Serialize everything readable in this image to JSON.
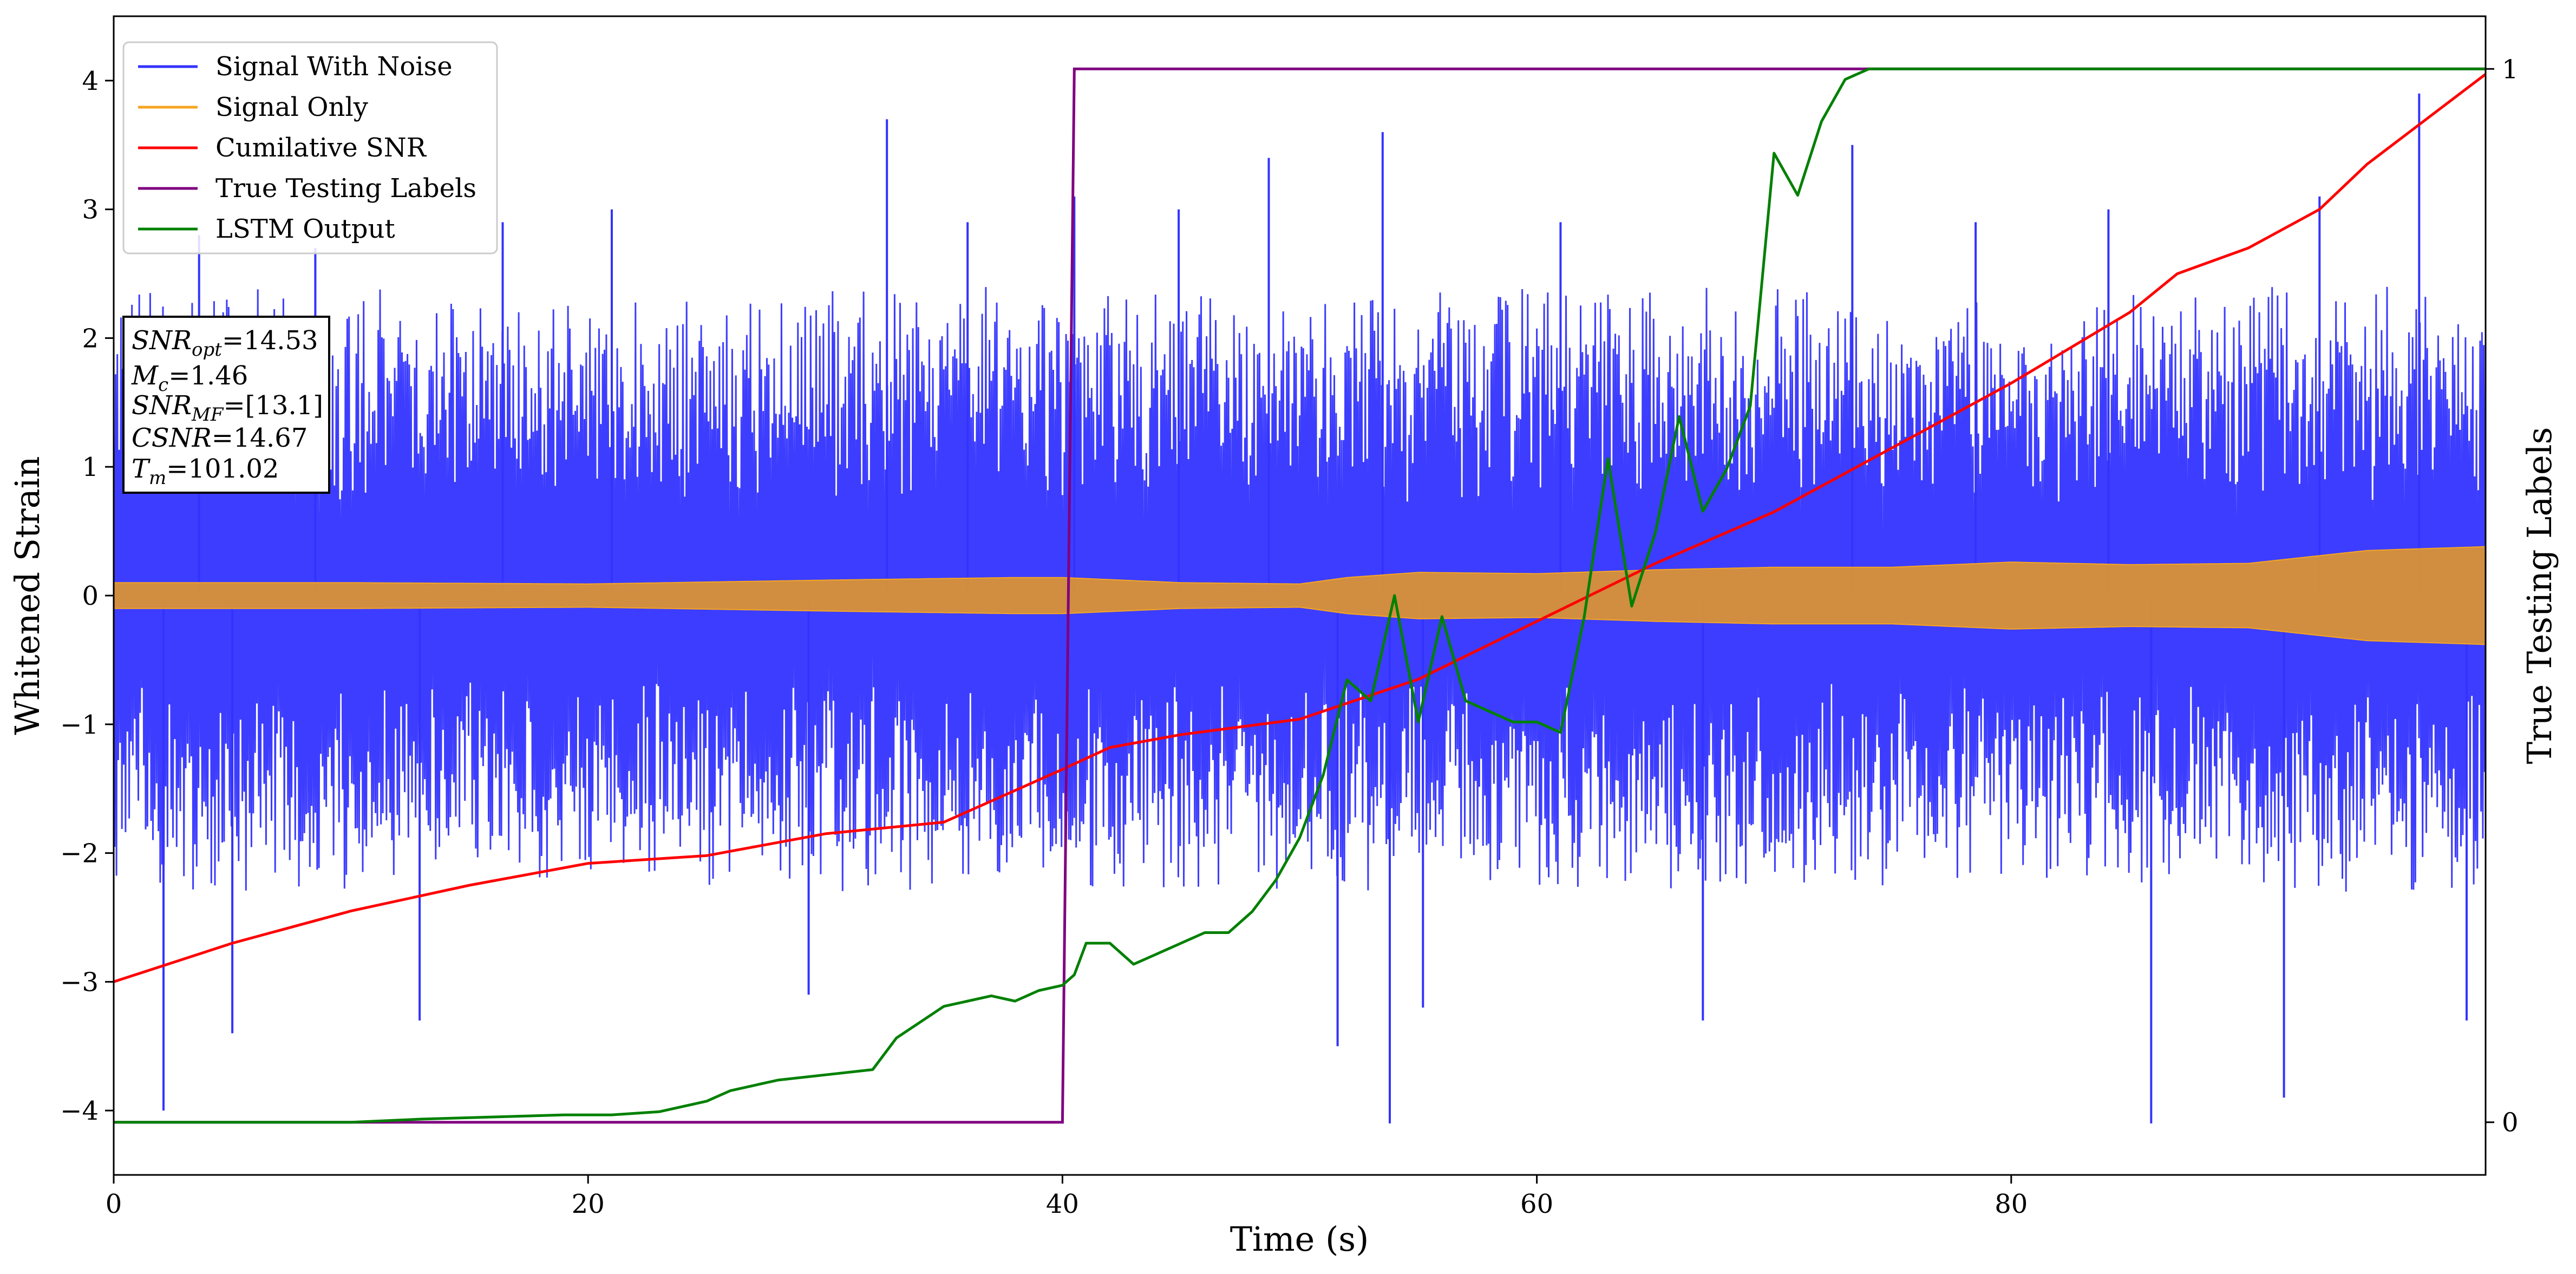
{
  "chart_data": {
    "type": "line",
    "title": "",
    "xlabel": "Time (s)",
    "ylabel": "Whitened Strain",
    "y2label": "True Testing Labels",
    "xlim": [
      0,
      100
    ],
    "ylim": [
      -4.5,
      4.5
    ],
    "y2lim": [
      -0.05,
      1.05
    ],
    "x_ticks": [
      0,
      20,
      40,
      60,
      80
    ],
    "x_tick_labels": [
      "0",
      "20",
      "40",
      "60",
      "80"
    ],
    "y_ticks": [
      -4,
      -3,
      -2,
      -1,
      0,
      1,
      2,
      3,
      4
    ],
    "y_tick_labels": [
      "−4",
      "−3",
      "−2",
      "−1",
      "0",
      "1",
      "2",
      "3",
      "4"
    ],
    "y2_ticks": [
      0,
      1
    ],
    "y2_tick_labels": [
      "0",
      "1"
    ],
    "legend": {
      "position": "top-left",
      "entries": [
        "Signal With Noise",
        "Signal Only",
        "Cumilative SNR",
        "True Testing Labels",
        "LSTM Output"
      ]
    },
    "annotation_lines": [
      {
        "var": "SNR",
        "sub": "opt",
        "value": "=14.53"
      },
      {
        "var": "M",
        "sub": "c",
        "value": "=1.46"
      },
      {
        "var": "SNR",
        "sub": "MF",
        "value": "=[13.1]"
      },
      {
        "var": "CSNR",
        "sub": "",
        "value": "=14.67"
      },
      {
        "var": "T",
        "sub": "m",
        "value": "=101.02"
      }
    ],
    "series": [
      {
        "name": "Signal With Noise",
        "color": "#3333ff",
        "kind": "noise_band",
        "note": "dense whitened noise, bulk within about -2.3..2.4, spikes to about -4.1 and 3.9",
        "x": [
          0,
          10,
          20,
          30,
          40,
          50,
          60,
          70,
          80,
          90,
          100
        ],
        "y_envelope_upper": [
          2.4,
          2.4,
          2.3,
          2.4,
          2.4,
          2.3,
          2.4,
          2.4,
          2.3,
          2.4,
          2.4
        ],
        "y_envelope_lower": [
          -2.3,
          -2.3,
          -2.2,
          -2.3,
          -2.3,
          -2.3,
          -2.3,
          -2.3,
          -2.2,
          -2.3,
          -2.3
        ],
        "spikes": [
          {
            "x": 2.1,
            "y": -4.0
          },
          {
            "x": 3.6,
            "y": 2.8
          },
          {
            "x": 5.0,
            "y": -3.4
          },
          {
            "x": 8.5,
            "y": 2.7
          },
          {
            "x": 12.9,
            "y": -3.3
          },
          {
            "x": 16.4,
            "y": 2.9
          },
          {
            "x": 21.0,
            "y": 3.0
          },
          {
            "x": 29.3,
            "y": -3.1
          },
          {
            "x": 32.6,
            "y": 3.7
          },
          {
            "x": 36.0,
            "y": 2.9
          },
          {
            "x": 40.5,
            "y": 3.1
          },
          {
            "x": 44.9,
            "y": 3.0
          },
          {
            "x": 48.7,
            "y": 3.4
          },
          {
            "x": 51.6,
            "y": -3.5
          },
          {
            "x": 53.5,
            "y": 3.6
          },
          {
            "x": 53.8,
            "y": -4.1
          },
          {
            "x": 55.2,
            "y": -3.2
          },
          {
            "x": 61.0,
            "y": 2.9
          },
          {
            "x": 67.0,
            "y": -3.3
          },
          {
            "x": 73.3,
            "y": 3.5
          },
          {
            "x": 78.5,
            "y": 2.9
          },
          {
            "x": 84.1,
            "y": 3.0
          },
          {
            "x": 85.9,
            "y": -4.1
          },
          {
            "x": 91.5,
            "y": -3.9
          },
          {
            "x": 93.0,
            "y": 3.1
          },
          {
            "x": 97.2,
            "y": 3.9
          },
          {
            "x": 99.2,
            "y": -3.3
          }
        ]
      },
      {
        "name": "Signal Only",
        "color": "#f5a623",
        "kind": "chirp_band",
        "x": [
          0,
          10,
          20,
          30,
          38,
          40,
          45,
          50,
          52,
          55,
          60,
          65,
          70,
          75,
          80,
          85,
          90,
          95,
          100
        ],
        "amplitude": [
          0.1,
          0.1,
          0.09,
          0.12,
          0.14,
          0.14,
          0.1,
          0.09,
          0.14,
          0.18,
          0.17,
          0.2,
          0.22,
          0.22,
          0.26,
          0.24,
          0.25,
          0.35,
          0.38
        ]
      },
      {
        "name": "Cumilative SNR",
        "color": "#ff0000",
        "x": [
          0,
          5,
          10,
          15,
          20,
          25,
          30,
          35,
          40,
          42,
          45,
          50,
          55,
          60,
          65,
          70,
          75,
          80,
          85,
          87,
          90,
          93,
          95,
          100
        ],
        "y": [
          -3.0,
          -2.7,
          -2.45,
          -2.25,
          -2.08,
          -2.02,
          -1.85,
          -1.76,
          -1.35,
          -1.18,
          -1.08,
          -0.96,
          -0.65,
          -0.2,
          0.25,
          0.65,
          1.15,
          1.65,
          2.2,
          2.5,
          2.7,
          3.0,
          3.35,
          4.05
        ]
      },
      {
        "name": "True Testing Labels",
        "color": "#800080",
        "axis": "y2",
        "x": [
          0,
          40.0,
          40.5,
          100
        ],
        "y": [
          0,
          0,
          1,
          1
        ]
      },
      {
        "name": "LSTM Output",
        "color": "#008000",
        "axis": "y2",
        "x": [
          0,
          10,
          13,
          16,
          19,
          21,
          23,
          25,
          26,
          28,
          30,
          32,
          33,
          34,
          35,
          36,
          37,
          38,
          39,
          40,
          40.5,
          41,
          42,
          43,
          44,
          45,
          46,
          47,
          48,
          49,
          50,
          51,
          52,
          53,
          54,
          55,
          56,
          57,
          58,
          59,
          60,
          61,
          62,
          63,
          64,
          65,
          66,
          67,
          68,
          69,
          70,
          71,
          72,
          73,
          74,
          76,
          78,
          80,
          100
        ],
        "y": [
          0,
          0,
          0.003,
          0.005,
          0.007,
          0.007,
          0.01,
          0.02,
          0.03,
          0.04,
          0.045,
          0.05,
          0.08,
          0.095,
          0.11,
          0.115,
          0.12,
          0.115,
          0.125,
          0.13,
          0.14,
          0.17,
          0.17,
          0.15,
          0.16,
          0.17,
          0.18,
          0.18,
          0.2,
          0.23,
          0.27,
          0.33,
          0.42,
          0.4,
          0.5,
          0.38,
          0.48,
          0.4,
          0.39,
          0.38,
          0.38,
          0.37,
          0.48,
          0.63,
          0.49,
          0.56,
          0.67,
          0.58,
          0.62,
          0.68,
          0.92,
          0.88,
          0.95,
          0.99,
          1.0,
          1.0,
          1.0,
          1.0,
          1.0
        ]
      }
    ]
  }
}
